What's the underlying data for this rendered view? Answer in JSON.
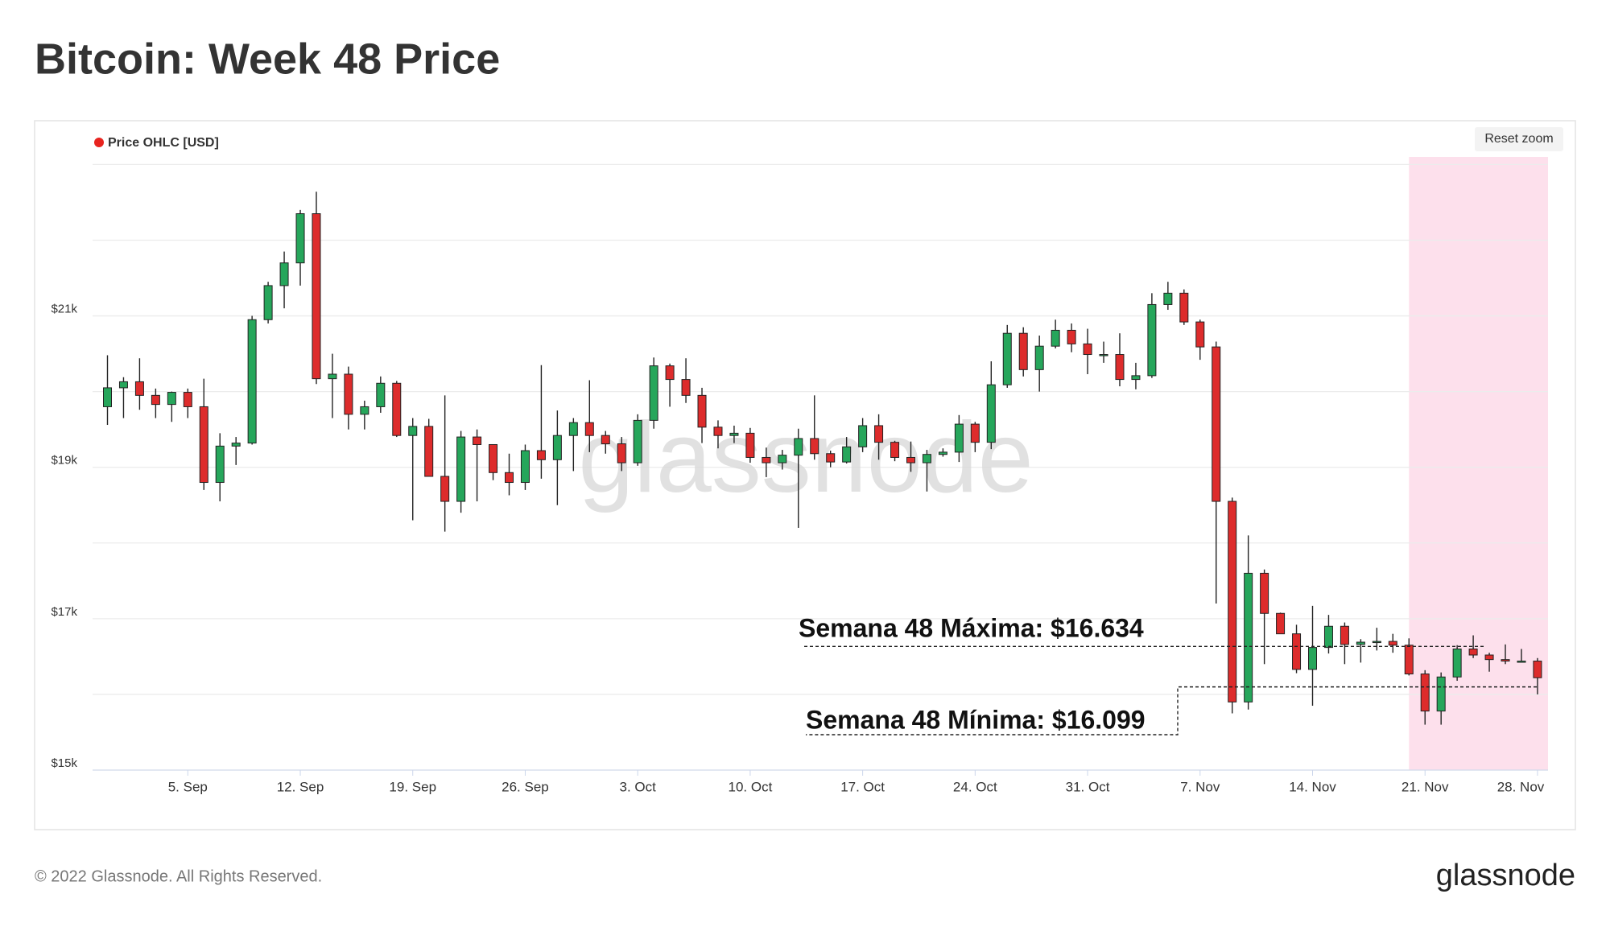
{
  "chart_data": {
    "type": "candlestick",
    "title": "Bitcoin: Week 48 Price",
    "legend": "Price OHLC [USD]",
    "legend_color": "#e8241f",
    "reset_zoom": "Reset zoom",
    "watermark": "glassnode",
    "up_color": "#26a65b",
    "down_color": "#dd2c2c",
    "highlight_color": "#fde0ec",
    "highlight_from": "20. Nov",
    "grid": true,
    "x": [
      "31. Aug",
      "1. Sep",
      "2. Sep",
      "3. Sep",
      "4. Sep",
      "5. Sep",
      "6. Sep",
      "7. Sep",
      "8. Sep",
      "9. Sep",
      "10. Sep",
      "11. Sep",
      "12. Sep",
      "13. Sep",
      "14. Sep",
      "15. Sep",
      "16. Sep",
      "17. Sep",
      "18. Sep",
      "19. Sep",
      "20. Sep",
      "21. Sep",
      "22. Sep",
      "23. Sep",
      "24. Sep",
      "25. Sep",
      "26. Sep",
      "27. Sep",
      "28. Sep",
      "29. Sep",
      "30. Sep",
      "1. Oct",
      "2. Oct",
      "3. Oct",
      "4. Oct",
      "5. Oct",
      "6. Oct",
      "7. Oct",
      "8. Oct",
      "9. Oct",
      "10. Oct",
      "11. Oct",
      "12. Oct",
      "13. Oct",
      "14. Oct",
      "15. Oct",
      "16. Oct",
      "17. Oct",
      "18. Oct",
      "19. Oct",
      "20. Oct",
      "21. Oct",
      "22. Oct",
      "23. Oct",
      "24. Oct",
      "25. Oct",
      "26. Oct",
      "27. Oct",
      "28. Oct",
      "29. Oct",
      "30. Oct",
      "31. Oct",
      "1. Nov",
      "2. Nov",
      "3. Nov",
      "4. Nov",
      "5. Nov",
      "6. Nov",
      "7. Nov",
      "8. Nov",
      "9. Nov",
      "10. Nov",
      "11. Nov",
      "12. Nov",
      "13. Nov",
      "14. Nov",
      "15. Nov",
      "16. Nov",
      "17. Nov",
      "18. Nov",
      "19. Nov",
      "20. Nov",
      "21. Nov",
      "22. Nov",
      "23. Nov",
      "24. Nov",
      "25. Nov",
      "26. Nov",
      "27. Nov",
      "28. Nov"
    ],
    "open": [
      19800,
      20050,
      20130,
      19950,
      19830,
      19990,
      19800,
      18800,
      19280,
      19320,
      20950,
      21400,
      21700,
      22350,
      20170,
      20230,
      19700,
      19800,
      20110,
      19420,
      19540,
      18880,
      18550,
      19400,
      19300,
      18930,
      18800,
      19220,
      19100,
      19420,
      19590,
      19420,
      19310,
      19060,
      19620,
      20340,
      20160,
      19950,
      19530,
      19420,
      19450,
      19130,
      19060,
      19160,
      19380,
      19180,
      19070,
      19270,
      19550,
      19330,
      19130,
      19060,
      19170,
      19200,
      19570,
      19330,
      20090,
      20770,
      20290,
      20600,
      20810,
      20630,
      20490,
      20490,
      20160,
      20210,
      21150,
      21300,
      20920,
      20590,
      18550,
      15900,
      17600,
      17070,
      16800,
      16330,
      16620,
      16900,
      16660,
      16690,
      16700,
      16650,
      16270,
      15780,
      16230,
      16600,
      16520,
      16460,
      16440,
      16440
    ],
    "high": [
      20480,
      20190,
      20440,
      20040,
      20000,
      20040,
      20170,
      19450,
      19400,
      21000,
      21450,
      21850,
      22400,
      22640,
      20500,
      20330,
      19880,
      20200,
      20140,
      19650,
      19640,
      19950,
      19480,
      19500,
      19300,
      19180,
      19300,
      20350,
      19750,
      19650,
      20150,
      19480,
      19400,
      19700,
      20450,
      20370,
      20440,
      20050,
      19620,
      19550,
      19520,
      19260,
      19230,
      19510,
      19950,
      19220,
      19400,
      19650,
      19700,
      19350,
      19340,
      19230,
      19250,
      19690,
      19600,
      20400,
      20880,
      20850,
      20740,
      20950,
      20900,
      20830,
      20660,
      20770,
      20380,
      21300,
      21450,
      21350,
      20950,
      20660,
      18600,
      18100,
      17650,
      17080,
      16920,
      17170,
      17050,
      16950,
      16730,
      16880,
      16800,
      16740,
      16320,
      16290,
      16650,
      16780,
      16550,
      16660,
      16600,
      16480
    ],
    "low": [
      19560,
      19650,
      19760,
      19650,
      19600,
      19650,
      18700,
      18550,
      19030,
      19300,
      20900,
      21100,
      21400,
      20100,
      19650,
      19500,
      19500,
      19720,
      19400,
      18300,
      18880,
      18150,
      18400,
      18550,
      18830,
      18630,
      18700,
      18850,
      18500,
      18950,
      19200,
      19180,
      18950,
      19020,
      19510,
      19800,
      19850,
      19320,
      19250,
      19320,
      19060,
      18870,
      18970,
      18200,
      19100,
      19000,
      19050,
      19200,
      19100,
      19080,
      18940,
      18680,
      19140,
      19070,
      19200,
      19240,
      20050,
      20200,
      20000,
      20570,
      20520,
      20230,
      20380,
      20070,
      20030,
      20180,
      21080,
      20880,
      20420,
      17200,
      15750,
      15800,
      16400,
      16800,
      16280,
      15850,
      16540,
      16400,
      16420,
      16580,
      16550,
      16250,
      15600,
      15600,
      16180,
      16480,
      16300,
      16400,
      16420,
      16000
    ],
    "close": [
      20050,
      20130,
      19950,
      19830,
      19990,
      19800,
      18800,
      19280,
      19320,
      20950,
      21400,
      21700,
      22350,
      20170,
      20230,
      19700,
      19800,
      20110,
      19420,
      19540,
      18880,
      18550,
      19400,
      19300,
      18930,
      18800,
      19220,
      19100,
      19420,
      19590,
      19420,
      19310,
      19060,
      19620,
      20340,
      20160,
      19950,
      19530,
      19420,
      19450,
      19130,
      19060,
      19160,
      19380,
      19180,
      19070,
      19270,
      19550,
      19330,
      19130,
      19060,
      19170,
      19200,
      19570,
      19330,
      20090,
      20770,
      20290,
      20600,
      20810,
      20630,
      20490,
      20490,
      20160,
      20210,
      21150,
      21300,
      20920,
      20590,
      18550,
      15900,
      17600,
      17070,
      16800,
      16330,
      16620,
      16900,
      16660,
      16690,
      16700,
      16650,
      16270,
      15780,
      16230,
      16600,
      16520,
      16460,
      16440,
      16440,
      16220
    ],
    "ylim": [
      15000,
      23100
    ],
    "yticks": [
      {
        "value": 15000,
        "label": "$15k"
      },
      {
        "value": 16000,
        "label": null
      },
      {
        "value": 17000,
        "label": "$17k"
      },
      {
        "value": 18000,
        "label": null
      },
      {
        "value": 19000,
        "label": "$19k"
      },
      {
        "value": 20000,
        "label": null
      },
      {
        "value": 21000,
        "label": "$21k"
      },
      {
        "value": 22000,
        "label": null
      },
      {
        "value": 23000,
        "label": null
      }
    ],
    "xticks": [
      "5. Sep",
      "12. Sep",
      "19. Sep",
      "26. Sep",
      "3. Oct",
      "10. Oct",
      "17. Oct",
      "24. Oct",
      "31. Oct",
      "7. Nov",
      "14. Nov",
      "21. Nov",
      "28. Nov"
    ],
    "annotations": [
      {
        "text": "Semana 48 Máxima: $16.634",
        "value": 16634
      },
      {
        "text": "Semana 48 Mínima: $16.099",
        "value": 16099
      }
    ]
  },
  "footer": {
    "copyright": "© 2022 Glassnode. All Rights Reserved.",
    "logo": "glassnode"
  }
}
